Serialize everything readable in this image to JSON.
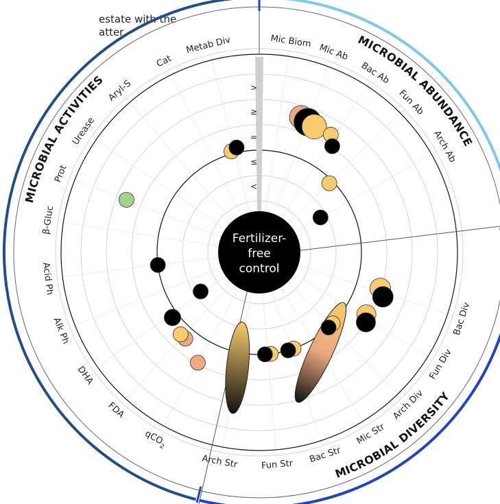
{
  "intro_text": {
    "line1": "estate with the",
    "line2": "atter"
  },
  "colors": {
    "black": "#000000",
    "yellow": "#F8CB6C",
    "salmon": "#EBAA82",
    "green": "#A8D08D",
    "abundance_ring": "#7DC8EE",
    "diversity_ring": "#1D43C8",
    "activities_ring": "#1F4E8C"
  },
  "chart_data": {
    "type": "radial-scatter",
    "center_label": [
      "Fertilizer-",
      "free",
      "control"
    ],
    "reference_symbols": [
      ">",
      "≥",
      "=",
      "≤",
      "<"
    ],
    "sections": [
      {
        "name": "MICROBIAL ABUNDANCE",
        "color": "#7DC8EE"
      },
      {
        "name": "MICROBIAL DIVERSITY",
        "color": "#1D43C8"
      },
      {
        "name": "MICROBIAL ACTIVITIES",
        "color": "#1F4E8C"
      }
    ],
    "categories": [
      "Mic Biom",
      "Mic Ab",
      "Bac Ab",
      "Fun Ab",
      "Arch Ab",
      "Bac Div",
      "Fun Div",
      "Arch Div",
      "Mic Str",
      "Bac Str",
      "Fun Str",
      "Arch Str",
      "qCO2",
      "FDA",
      "DHA",
      "Alk Ph",
      "Acid Ph",
      "β-Gluc",
      "Prot",
      "Urease",
      "Aryl-S",
      "Cat",
      "Metab Div"
    ],
    "points": [
      {
        "category": "Mic Ab",
        "level": 4.55,
        "color": "salmon",
        "size": 17
      },
      {
        "category": "Mic Ab",
        "level": 4.45,
        "color": "black",
        "size": 20
      },
      {
        "category": "Mic Ab",
        "level": 4.38,
        "color": "yellow",
        "size": 18
      },
      {
        "category": "Bac Ab",
        "level": 4.4,
        "color": "yellow",
        "size": 11
      },
      {
        "category": "Bac Ab",
        "level": 4.05,
        "color": "black",
        "size": 11
      },
      {
        "category": "Fun Ab",
        "level": 2.85,
        "color": "yellow",
        "size": 11
      },
      {
        "category": "Arch Ab",
        "level": 1.75,
        "color": "black",
        "size": 11
      },
      {
        "category": "Bac Div",
        "level": 3.95,
        "color": "yellow",
        "size": 15
      },
      {
        "category": "Bac Div",
        "level": 4.15,
        "color": "black",
        "size": 15
      },
      {
        "category": "Fun Div",
        "level": 3.85,
        "color": "yellow",
        "size": 14
      },
      {
        "category": "Fun Div",
        "level": 4.0,
        "color": "black",
        "size": 14
      },
      {
        "category": "Arch Div",
        "level": 3.0,
        "color": "yellow",
        "size": 11
      },
      {
        "category": "Arch Div",
        "level": 3.0,
        "color": "black",
        "size": 11
      },
      {
        "category": "Bac Str",
        "level": 3.0,
        "color": "yellow",
        "size": 11
      },
      {
        "category": "Bac Str",
        "level": 3.0,
        "color": "black",
        "size": 11
      },
      {
        "category": "Fun Str",
        "level": 3.0,
        "color": "yellow",
        "size": 11
      },
      {
        "category": "Fun Str",
        "level": 3.0,
        "color": "black",
        "size": 11
      },
      {
        "category": "qCO2",
        "level": 3.95,
        "color": "salmon",
        "size": 11
      },
      {
        "category": "FDA",
        "level": 3.45,
        "color": "salmon",
        "size": 11
      },
      {
        "category": "FDA",
        "level": 3.45,
        "color": "yellow",
        "size": 11
      },
      {
        "category": "DHA",
        "level": 3.25,
        "color": "black",
        "size": 12
      },
      {
        "category": "DHA",
        "level": 1.75,
        "color": "black",
        "size": 11
      },
      {
        "category": "Acid Ph",
        "level": 3.0,
        "color": "black",
        "size": 11
      },
      {
        "category": "Prot",
        "level": 4.6,
        "color": "green",
        "size": 11
      },
      {
        "category": "Metab Div",
        "level": 3.1,
        "color": "yellow",
        "size": 11
      },
      {
        "category": "Metab Div",
        "level": 3.2,
        "color": "black",
        "size": 11
      }
    ],
    "ellipses": [
      {
        "category": "Mic Str",
        "level": 3.6,
        "gradient": [
          "#111111",
          "#E9A77E",
          "#F8CB6C"
        ],
        "rx": 80,
        "ry": 17,
        "tilt": -65
      },
      {
        "category": "Arch Str",
        "level": 3.6,
        "gradient": [
          "#111111",
          "#F8CB6C"
        ],
        "rx": 67,
        "ry": 16,
        "tilt": -84
      }
    ]
  }
}
